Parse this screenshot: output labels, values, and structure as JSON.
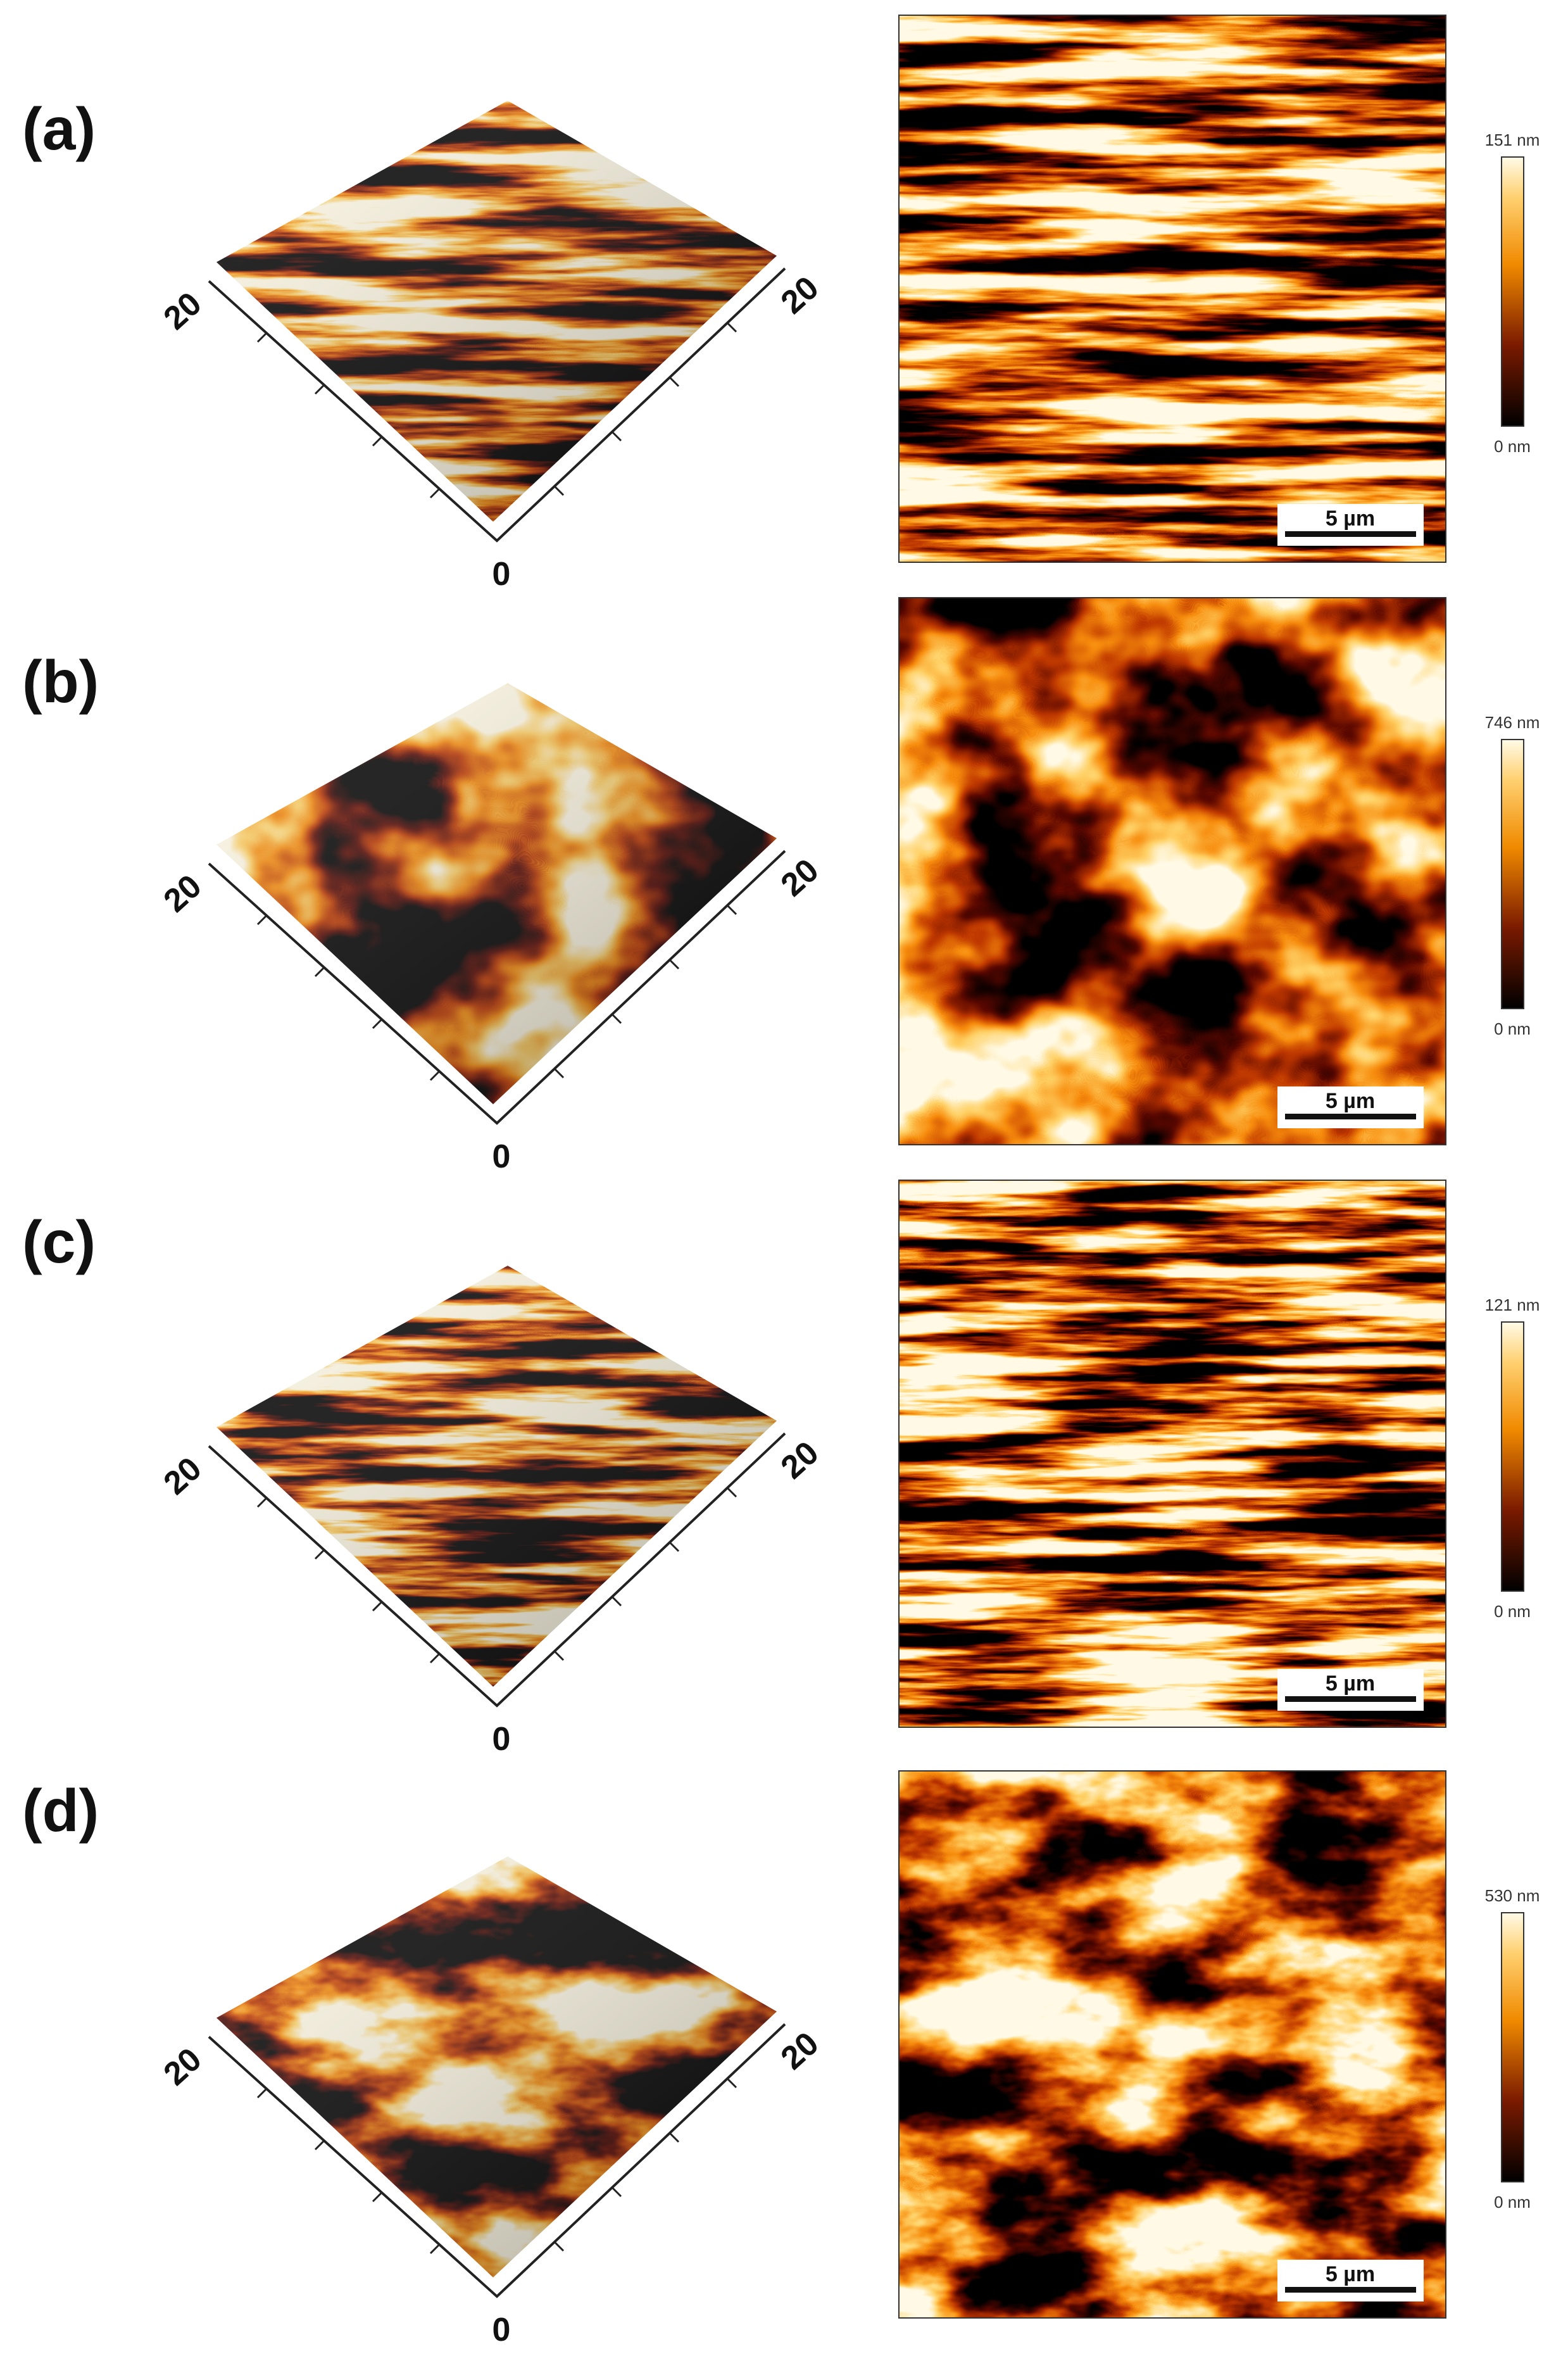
{
  "panels": [
    {
      "label": "(a)",
      "surface_axis_labels": [
        "20",
        "20",
        "0"
      ],
      "colorbar": {
        "max_label": "151 nm",
        "min_label": "0 nm"
      },
      "scale_bar": "5 µm"
    },
    {
      "label": "(b)",
      "surface_axis_labels": [
        "20",
        "20",
        "0"
      ],
      "colorbar": {
        "max_label": "746 nm",
        "min_label": "0 nm"
      },
      "scale_bar": "5 µm"
    },
    {
      "label": "(c)",
      "surface_axis_labels": [
        "20",
        "20",
        "0"
      ],
      "colorbar": {
        "max_label": "121 nm",
        "min_label": "0 nm"
      },
      "scale_bar": "5 µm"
    },
    {
      "label": "(d)",
      "surface_axis_labels": [
        "20",
        "20",
        "0"
      ],
      "colorbar": {
        "max_label": "530 nm",
        "min_label": "0 nm"
      },
      "scale_bar": "5 µm"
    }
  ]
}
